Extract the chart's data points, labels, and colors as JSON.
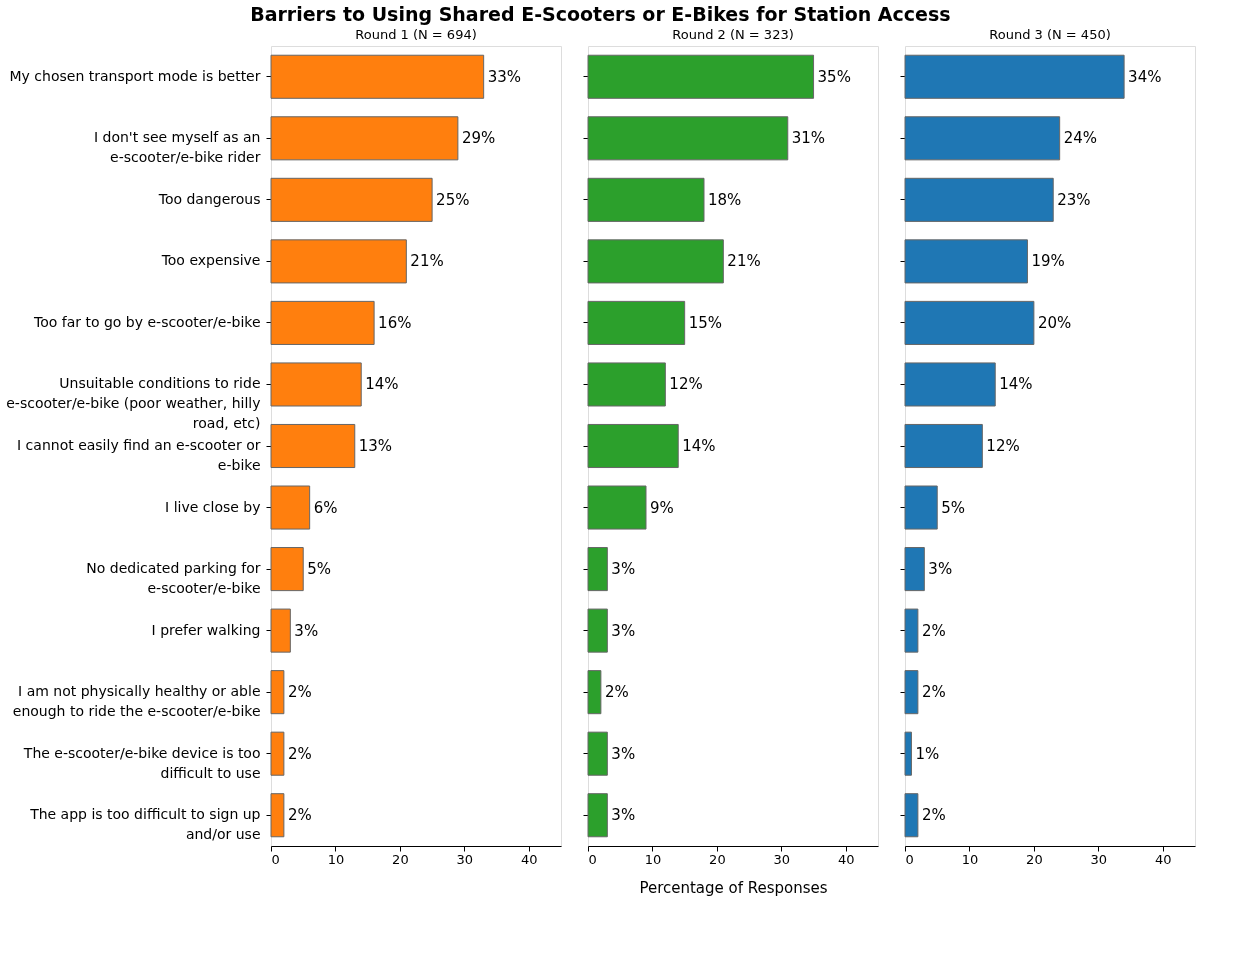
{
  "chart_data": [
    {
      "type": "bar",
      "orientation": "horizontal",
      "title": "Barriers to Using Shared E-Scooters or E-Bikes for Station Access",
      "subtitle": "Round 1 (N = 694)",
      "categories": [
        "My chosen transport mode is better",
        "I don't see myself as an\ne-scooter/e-bike rider",
        "Too dangerous",
        "Too expensive",
        "Too far to go by e-scooter/e-bike",
        "Unsuitable conditions to ride\ne-scooter/e-bike (poor weather, hilly\nroad, etc)",
        "I cannot easily find an e-scooter or\ne-bike",
        "I live close by",
        "No dedicated parking for\ne-scooter/e-bike",
        "I prefer walking",
        "I am not physically healthy or able\nenough to ride the e-scooter/e-bike",
        "The e-scooter/e-bike device is too\ndifficult to use",
        "The app is too difficult to sign up\nand/or use"
      ],
      "values": [
        33,
        29,
        25,
        21,
        16,
        14,
        13,
        6,
        5,
        3,
        2,
        2,
        2
      ],
      "value_labels": [
        "33%",
        "29%",
        "25%",
        "21%",
        "16%",
        "14%",
        "13%",
        "6%",
        "5%",
        "3%",
        "2%",
        "2%",
        "2%"
      ],
      "color": "#ff7f0e",
      "xlim": [
        0,
        45
      ],
      "xticks": [
        0,
        10,
        20,
        30,
        40
      ],
      "grid": false
    },
    {
      "type": "bar",
      "orientation": "horizontal",
      "subtitle": "Round 2 (N = 323)",
      "xlabel": "Percentage of Responses",
      "tick_labels": "x",
      "values": [
        35,
        31,
        18,
        21,
        15,
        12,
        14,
        9,
        3,
        3,
        2,
        3,
        3
      ],
      "value_labels": [
        "35%",
        "31%",
        "18%",
        "21%",
        "15%",
        "12%",
        "14%",
        "9%",
        "3%",
        "3%",
        "2%",
        "3%",
        "3%"
      ],
      "color": "#2ca02c",
      "xlim": [
        0,
        45
      ],
      "xticks": [
        0,
        10,
        20,
        30,
        40
      ],
      "grid": false
    },
    {
      "type": "bar",
      "orientation": "horizontal",
      "subtitle": "Round 3 (N = 450)",
      "tick_labels": "x",
      "values": [
        34,
        24,
        23,
        19,
        20,
        14,
        12,
        5,
        3,
        2,
        2,
        1,
        2
      ],
      "value_labels": [
        "34%",
        "24%",
        "23%",
        "19%",
        "20%",
        "14%",
        "12%",
        "5%",
        "3%",
        "2%",
        "2%",
        "1%",
        "2%"
      ],
      "color": "#1f77b4",
      "xlim": [
        0,
        45
      ],
      "xticks": [
        0,
        10,
        20,
        30,
        40
      ],
      "grid": false
    }
  ]
}
